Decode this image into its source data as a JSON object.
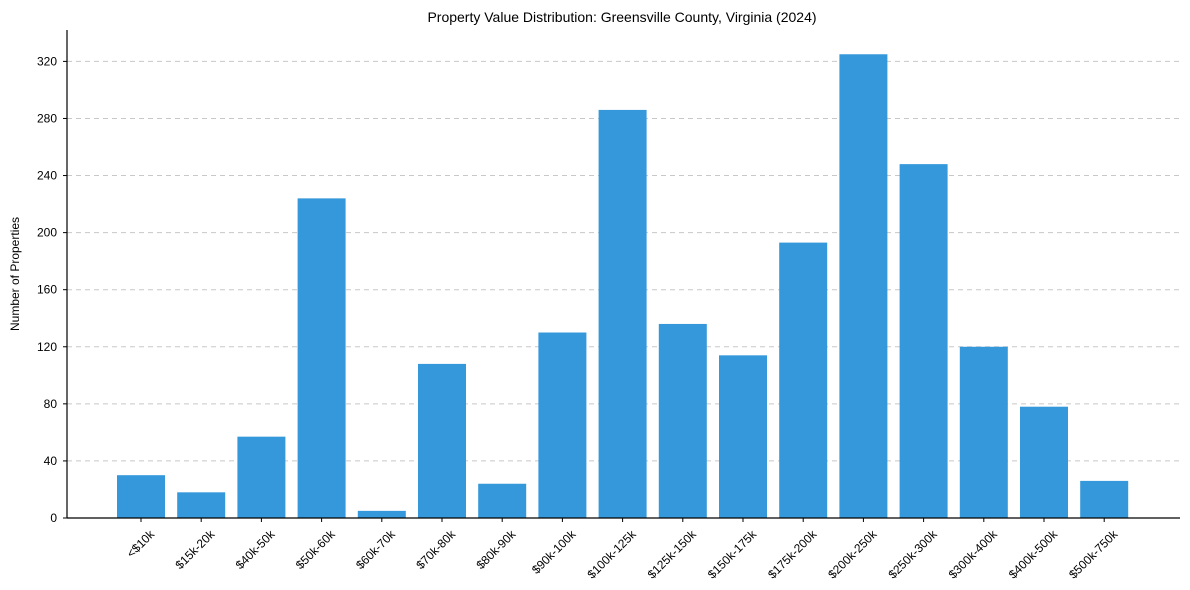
{
  "chart_data": {
    "type": "bar",
    "title": "Property Value Distribution: Greensville County, Virginia (2024)",
    "xlabel": "",
    "ylabel": "Number of Properties",
    "categories": [
      "<$10k",
      "$15k-20k",
      "$40k-50k",
      "$50k-60k",
      "$60k-70k",
      "$70k-80k",
      "$80k-90k",
      "$90k-100k",
      "$100k-125k",
      "$125k-150k",
      "$150k-175k",
      "$175k-200k",
      "$200k-250k",
      "$250k-300k",
      "$300k-400k",
      "$400k-500k",
      "$500k-750k"
    ],
    "values": [
      30,
      18,
      57,
      224,
      5,
      108,
      24,
      130,
      286,
      136,
      114,
      193,
      325,
      248,
      120,
      78,
      26
    ],
    "ylim": [
      0,
      342
    ],
    "yticks": [
      0,
      40,
      80,
      120,
      160,
      200,
      240,
      280,
      320
    ],
    "grid": "y",
    "bar_color": "#3498db",
    "legend": "none"
  }
}
